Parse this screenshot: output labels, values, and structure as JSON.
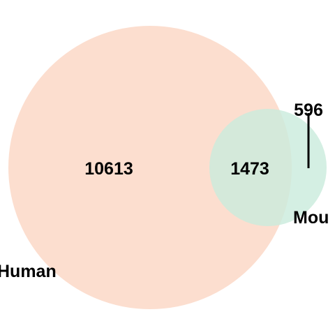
{
  "venn": {
    "sets": [
      {
        "name": "Human",
        "color": "#fbd6c3"
      },
      {
        "name": "Mou",
        "color": "#c9ebdc"
      }
    ],
    "regions": {
      "only_human": "10613",
      "overlap": "1473",
      "only_mouse": "596"
    }
  }
}
